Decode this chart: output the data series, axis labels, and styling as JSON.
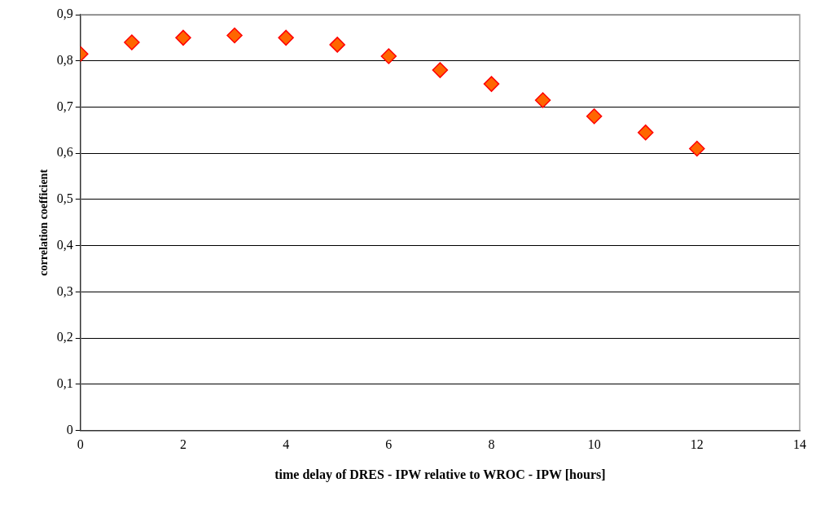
{
  "chart_data": {
    "type": "scatter",
    "xlabel": "time delay of DRES - IPW relative to WROC - IPW [hours]",
    "ylabel": "correlation coefficient",
    "x": [
      0,
      1,
      2,
      3,
      4,
      5,
      6,
      7,
      8,
      9,
      10,
      11,
      12
    ],
    "series": [
      {
        "color": "#ff6600",
        "values": [
          0.815,
          0.84,
          0.85,
          0.855,
          0.85,
          0.835,
          0.81,
          0.78,
          0.75,
          0.715,
          0.68,
          0.645,
          0.61
        ]
      }
    ],
    "xlim": [
      0,
      14
    ],
    "xticks": [
      0,
      2,
      4,
      6,
      8,
      10,
      12,
      14
    ],
    "ylim": [
      0,
      0.9
    ],
    "yticks": [
      {
        "value": 0,
        "label": "0"
      },
      {
        "value": 0.1,
        "label": "0,1"
      },
      {
        "value": 0.2,
        "label": "0,2"
      },
      {
        "value": 0.3,
        "label": "0,3"
      },
      {
        "value": 0.4,
        "label": "0,4"
      },
      {
        "value": 0.5,
        "label": "0,5"
      },
      {
        "value": 0.6,
        "label": "0,6"
      },
      {
        "value": 0.7,
        "label": "0,7"
      },
      {
        "value": 0.8,
        "label": "0,8"
      },
      {
        "value": 0.9,
        "label": "0,9"
      }
    ],
    "grid": "y",
    "legend": false,
    "marker": "diamond"
  }
}
